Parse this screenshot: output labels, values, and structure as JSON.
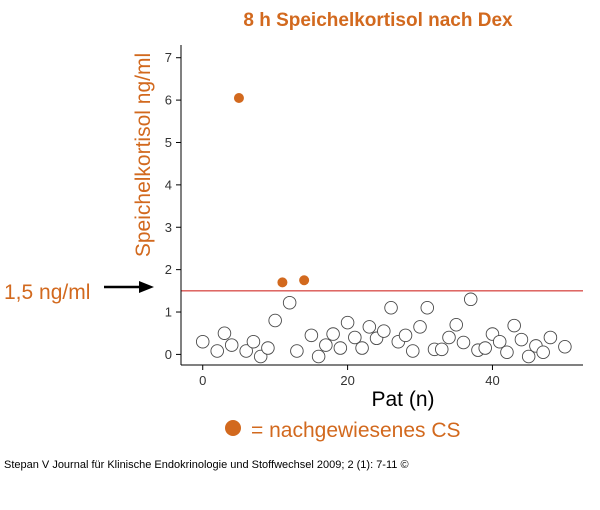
{
  "chart_data": {
    "type": "scatter",
    "title": "8 h Speichelkortisol nach Dex",
    "xlabel": "Pat (n)",
    "ylabel": "Speichelkortisol ng/ml",
    "xlim": [
      -3,
      52.5
    ],
    "ylim": [
      -0.25,
      7.3
    ],
    "xticks": [
      0,
      20,
      40
    ],
    "yticks": [
      0,
      1,
      2,
      3,
      4,
      5,
      6,
      7
    ],
    "grid": false,
    "reference_line": {
      "y": 1.5,
      "label": "1,5 ng/ml",
      "color": "#d9534f"
    },
    "series": [
      {
        "name": "nachgewiesenes CS",
        "style": "filled",
        "color": "#d2691e",
        "x": [
          5,
          11,
          14
        ],
        "y": [
          6.05,
          1.7,
          1.75
        ]
      },
      {
        "style": "open",
        "color": "#ffffff",
        "x": [
          0,
          2,
          3,
          4,
          6,
          7,
          8,
          9,
          10,
          12,
          13,
          15,
          16,
          17,
          18,
          19,
          20,
          21,
          22,
          23,
          24,
          25,
          26,
          27,
          28,
          29,
          30,
          31,
          32,
          33,
          34,
          35,
          36,
          37,
          38,
          39,
          40,
          41,
          42,
          43,
          44,
          45,
          46,
          47,
          48,
          50
        ],
        "y": [
          0.3,
          0.08,
          0.5,
          0.22,
          0.08,
          0.3,
          -0.05,
          0.15,
          0.8,
          1.22,
          0.08,
          0.45,
          -0.05,
          0.22,
          0.48,
          0.15,
          0.75,
          0.4,
          0.15,
          0.65,
          0.38,
          0.55,
          1.1,
          0.3,
          0.45,
          0.08,
          0.65,
          1.1,
          0.12,
          0.12,
          0.4,
          0.7,
          0.28,
          1.3,
          0.1,
          0.15,
          0.48,
          0.3,
          0.05,
          0.68,
          0.35,
          -0.05,
          0.2,
          0.05,
          0.4,
          0.18
        ]
      }
    ]
  },
  "legend": {
    "text": "= nachgewiesenes CS"
  },
  "annotation": {
    "text": "1,5 ng/ml"
  },
  "footer": "Stepan V Journal für Klinische Endokrinologie und Stoffwechsel 2009; 2 (1): 7-11 ©",
  "colors": {
    "accent": "#d2691e",
    "reference_line": "#d9534f"
  }
}
